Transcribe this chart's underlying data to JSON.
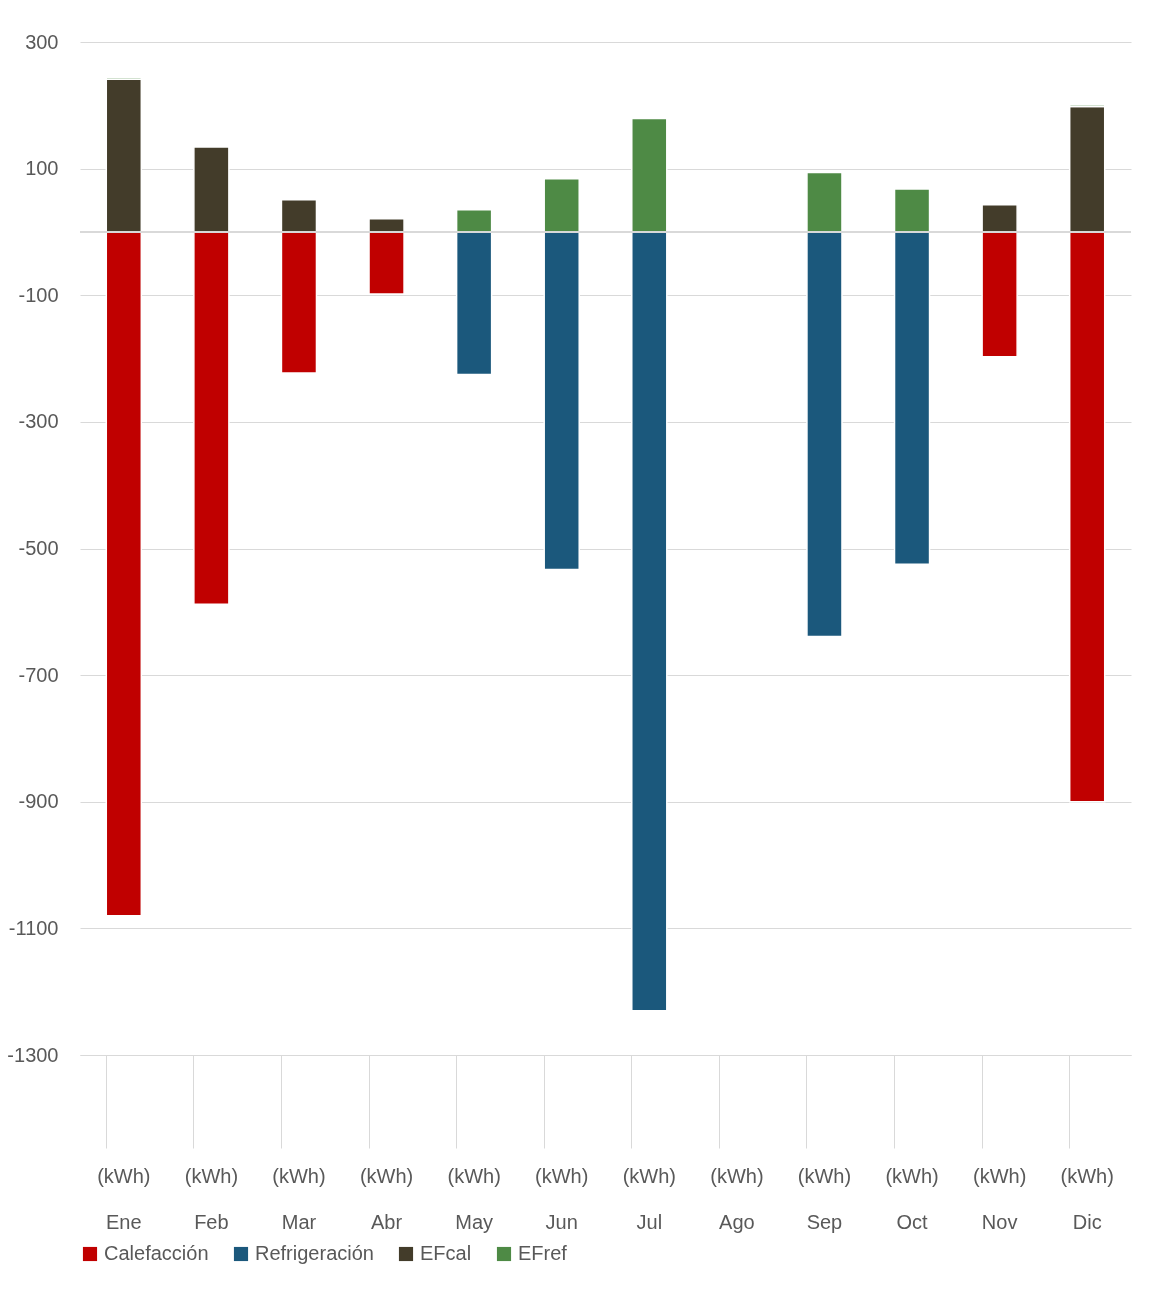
{
  "chart_data": {
    "type": "bar",
    "stacked": true,
    "categories": [
      "(kWh)\nEne",
      "(kWh)\nFeb",
      "(kWh)\nMar",
      "(kWh)\nAbr",
      "(kWh)\nMay",
      "(kWh)\nJun",
      "(kWh)\nJul",
      "(kWh)\nAgo",
      "(kWh)\nSep",
      "(kWh)\nOct",
      "(kWh)\nNov",
      "(kWh)\nDic"
    ],
    "series": [
      {
        "name": "Calefacción",
        "color": "#c00000",
        "values": [
          -1080,
          -588,
          -223,
          -98,
          null,
          null,
          null,
          null,
          null,
          null,
          -197,
          -900
        ]
      },
      {
        "name": "Refrigeración",
        "color": "#1b587c",
        "values": [
          null,
          null,
          null,
          null,
          -225,
          -533,
          -1230,
          null,
          -639,
          -525,
          null,
          null
        ]
      },
      {
        "name": "EFcal",
        "color": "#433c2a",
        "values": [
          241,
          134,
          51,
          21,
          null,
          null,
          null,
          null,
          null,
          null,
          43,
          198
        ]
      },
      {
        "name": "EFref",
        "color": "#4e8a45",
        "values": [
          3,
          null,
          null,
          null,
          35,
          84,
          179,
          null,
          94,
          68,
          null,
          3
        ]
      }
    ],
    "ylim": [
      -1300,
      300
    ],
    "yticks": [
      300,
      100,
      -100,
      -300,
      -500,
      -700,
      -900,
      -1100,
      -1300
    ],
    "ref_lines": [
      {
        "axis": "y",
        "value": 0
      }
    ],
    "grid": "y",
    "legend": "bottom"
  }
}
